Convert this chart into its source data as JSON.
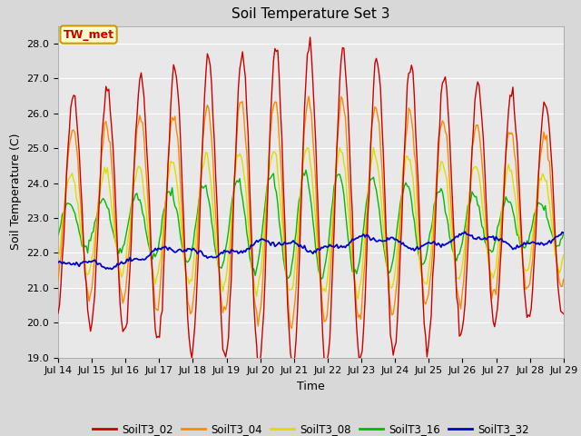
{
  "title": "Soil Temperature Set 3",
  "ylabel": "Soil Temperature (C)",
  "xlabel": "Time",
  "ylim": [
    19.0,
    28.5
  ],
  "yticks": [
    19.0,
    20.0,
    21.0,
    22.0,
    23.0,
    24.0,
    25.0,
    26.0,
    27.0,
    28.0
  ],
  "bg_color": "#d8d8d8",
  "plot_bg_color": "#e8e8e8",
  "series_colors": {
    "SoilT3_02": "#cc0000",
    "SoilT3_04": "#ff8800",
    "SoilT3_08": "#dddd00",
    "SoilT3_16": "#00bb00",
    "SoilT3_32": "#0000cc"
  },
  "annotation_text": "TW_met",
  "annotation_bg": "#ffffcc",
  "annotation_border": "#cc9900",
  "x_labels": [
    "Jul 14",
    "Jul 15",
    "Jul 16",
    "Jul 17",
    "Jul 18",
    "Jul 19",
    "Jul 20",
    "Jul 21",
    "Jul 22",
    "Jul 23",
    "Jul 24",
    "Jul 25",
    "Jul 26",
    "Jul 27",
    "Jul 28",
    "Jul 29"
  ],
  "linewidth": 1.0,
  "title_fontsize": 11,
  "tick_fontsize": 8,
  "label_fontsize": 9
}
